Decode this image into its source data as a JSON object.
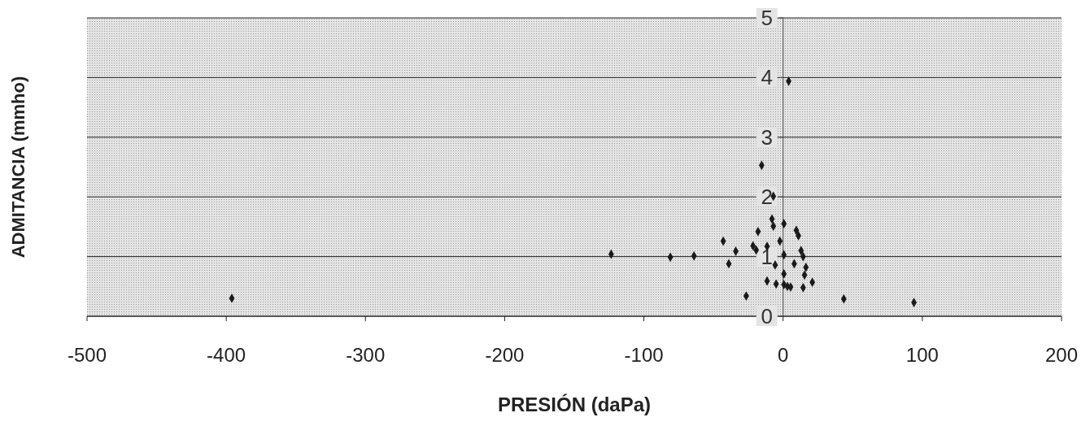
{
  "chart_data": {
    "type": "scatter",
    "xlabel": "PRESIÓN (daPa)",
    "ylabel": "ADMITANCIA (mmho)",
    "x": [
      -396,
      -123.5,
      -81,
      -64,
      -43,
      -39,
      -34,
      -26.5,
      -21.6,
      -19.3,
      -18,
      -15.4,
      -11.5,
      -11.5,
      -8,
      -7,
      -7,
      -5.7,
      -5,
      -2.3,
      0.6,
      0.6,
      0.6,
      0.6,
      3.1,
      4,
      5.4,
      8,
      9.5,
      11,
      12.9,
      14.4,
      14.4,
      15.4,
      16.4,
      21,
      43.6,
      94
    ],
    "series": [
      {
        "color": "#1a1a1a",
        "values": [
          0.3,
          1.04,
          0.99,
          1.01,
          1.26,
          0.88,
          1.09,
          0.34,
          1.18,
          1.11,
          1.42,
          2.53,
          1.17,
          0.59,
          1.63,
          2.01,
          1.51,
          0.86,
          0.54,
          1.26,
          1.55,
          1.03,
          0.71,
          0.53,
          0.5,
          3.94,
          0.49,
          0.88,
          1.44,
          1.35,
          1.1,
          1.0,
          0.48,
          0.69,
          0.82,
          0.57,
          0.29,
          0.23
        ]
      }
    ],
    "xlim": [
      -500,
      200
    ],
    "xticks": [
      -500,
      -400,
      -300,
      -200,
      -100,
      0,
      100,
      200
    ],
    "ylim": [
      0,
      5
    ],
    "yticks": [
      0,
      1,
      2,
      3,
      4,
      5
    ],
    "grid": "y",
    "marker": "diamond"
  }
}
